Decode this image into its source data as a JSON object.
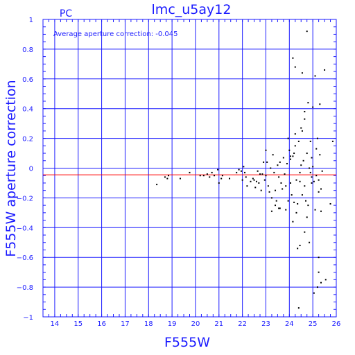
{
  "chart_data": {
    "type": "scatter",
    "title": "lmc_u5ay12",
    "corner_label": "PC",
    "annotation": "Average aperture correction: -0.045",
    "xlabel": "F555W",
    "ylabel": "F555W aperture correction",
    "xlim": [
      13.5,
      26
    ],
    "ylim": [
      -1,
      1
    ],
    "x_ticks": [
      14,
      15,
      16,
      17,
      18,
      19,
      20,
      21,
      22,
      23,
      24,
      25,
      26
    ],
    "y_ticks": [
      -1,
      -0.8,
      -0.6,
      -0.4,
      -0.2,
      0,
      0.2,
      0.4,
      0.6,
      0.8,
      1
    ],
    "x_tick_labels": [
      "14",
      "15",
      "16",
      "17",
      "18",
      "19",
      "20",
      "21",
      "22",
      "23",
      "24",
      "25",
      "26"
    ],
    "y_tick_labels": [
      "−1",
      "−0.8",
      "−0.6",
      "−0.4",
      "−0.2",
      "0",
      "0.2",
      "0.4",
      "0.6",
      "0.8",
      "1"
    ],
    "grid": true,
    "reference_lines": [
      {
        "y": -0.045,
        "color": "#ff0000"
      }
    ],
    "series": [
      {
        "color": "#000000",
        "points": [
          [
            18.35,
            -0.11
          ],
          [
            18.7,
            -0.06
          ],
          [
            18.8,
            -0.07
          ],
          [
            18.85,
            -0.05
          ],
          [
            19.35,
            -0.07
          ],
          [
            19.75,
            -0.03
          ],
          [
            20.2,
            -0.05
          ],
          [
            20.35,
            -0.05
          ],
          [
            20.5,
            -0.04
          ],
          [
            20.6,
            -0.06
          ],
          [
            20.7,
            -0.03
          ],
          [
            20.8,
            -0.05
          ],
          [
            20.95,
            -0.01
          ],
          [
            21.0,
            -0.1
          ],
          [
            21.1,
            -0.07
          ],
          [
            21.15,
            -0.05
          ],
          [
            21.45,
            -0.07
          ],
          [
            21.75,
            -0.03
          ],
          [
            21.85,
            -0.01
          ],
          [
            21.95,
            -0.02
          ],
          [
            22.0,
            -0.08
          ],
          [
            22.05,
            0.01
          ],
          [
            22.1,
            -0.03
          ],
          [
            22.15,
            -0.06
          ],
          [
            22.2,
            -0.12
          ],
          [
            22.35,
            -0.09
          ],
          [
            22.45,
            -0.07
          ],
          [
            22.5,
            -0.08
          ],
          [
            22.55,
            -0.13
          ],
          [
            22.6,
            -0.09
          ],
          [
            22.65,
            -0.02
          ],
          [
            22.7,
            -0.1
          ],
          [
            22.75,
            -0.04
          ],
          [
            22.8,
            -0.15
          ],
          [
            22.85,
            -0.04
          ],
          [
            22.9,
            0.04
          ],
          [
            22.95,
            -0.08
          ],
          [
            23.0,
            -0.05
          ],
          [
            23.05,
            0.04
          ],
          [
            23.1,
            -0.12
          ],
          [
            23.15,
            -0.16
          ],
          [
            23.2,
            0.0
          ],
          [
            23.25,
            -0.2
          ],
          [
            23.3,
            0.09
          ],
          [
            23.35,
            -0.03
          ],
          [
            23.4,
            -0.15
          ],
          [
            23.45,
            -0.22
          ],
          [
            23.5,
            0.02
          ],
          [
            23.55,
            -0.06
          ],
          [
            23.6,
            -0.27
          ],
          [
            23.65,
            -0.1
          ],
          [
            23.7,
            -0.14
          ],
          [
            23.75,
            0.07
          ],
          [
            23.8,
            -0.04
          ],
          [
            23.85,
            -0.12
          ],
          [
            23.9,
            0.03
          ],
          [
            23.95,
            0.2
          ],
          [
            24.0,
            0.12
          ],
          [
            24.05,
            0.06
          ],
          [
            24.1,
            -0.18
          ],
          [
            24.15,
            0.08
          ],
          [
            24.2,
            -0.23
          ],
          [
            24.25,
            0.15
          ],
          [
            24.3,
            -0.08
          ],
          [
            24.35,
            -0.24
          ],
          [
            24.4,
            0.18
          ],
          [
            24.45,
            -0.03
          ],
          [
            24.5,
            0.02
          ],
          [
            24.55,
            -0.18
          ],
          [
            24.6,
            0.05
          ],
          [
            24.65,
            0.38
          ],
          [
            24.7,
            -0.22
          ],
          [
            24.75,
            0.1
          ],
          [
            24.8,
            -0.25
          ],
          [
            24.85,
            0.0
          ],
          [
            24.9,
            -0.03
          ],
          [
            24.95,
            -0.06
          ],
          [
            25.0,
            0.01
          ],
          [
            25.05,
            -0.09
          ],
          [
            25.1,
            -0.28
          ],
          [
            25.15,
            -0.05
          ],
          [
            25.2,
            0.2
          ],
          [
            25.25,
            -0.08
          ],
          [
            25.3,
            0.09
          ],
          [
            25.35,
            -0.14
          ],
          [
            25.4,
            -0.02
          ],
          [
            23.0,
            0.12
          ],
          [
            23.6,
            0.04
          ],
          [
            23.85,
            -0.28
          ],
          [
            24.25,
            0.23
          ],
          [
            24.5,
            0.27
          ],
          [
            24.65,
            0.33
          ],
          [
            24.8,
            0.44
          ],
          [
            25.0,
            0.41
          ],
          [
            25.1,
            0.62
          ],
          [
            25.3,
            0.43
          ],
          [
            25.5,
            0.66
          ],
          [
            24.55,
            0.64
          ],
          [
            24.15,
            0.74
          ],
          [
            24.25,
            0.68
          ],
          [
            24.75,
            0.92
          ],
          [
            24.95,
            0.07
          ],
          [
            25.85,
            0.18
          ],
          [
            24.3,
            -0.3
          ],
          [
            24.35,
            -0.54
          ],
          [
            24.45,
            -0.52
          ],
          [
            24.65,
            -0.43
          ],
          [
            24.75,
            -0.33
          ],
          [
            24.85,
            -0.5
          ],
          [
            24.4,
            -0.94
          ],
          [
            25.05,
            -0.84
          ],
          [
            25.2,
            -0.8
          ],
          [
            25.25,
            -0.7
          ],
          [
            25.35,
            -0.77
          ],
          [
            25.55,
            -0.75
          ],
          [
            25.25,
            -0.6
          ],
          [
            25.75,
            -0.24
          ],
          [
            25.35,
            -0.29
          ],
          [
            23.25,
            -0.29
          ],
          [
            23.4,
            -0.25
          ],
          [
            23.55,
            -0.27
          ],
          [
            24.05,
            0.08
          ],
          [
            24.2,
            0.1
          ],
          [
            24.55,
            0.25
          ],
          [
            24.9,
            0.18
          ],
          [
            25.15,
            0.13
          ],
          [
            25.25,
            -0.16
          ],
          [
            23.95,
            -0.22
          ],
          [
            24.05,
            -0.1
          ],
          [
            24.15,
            -0.36
          ],
          [
            24.45,
            -0.09
          ],
          [
            24.65,
            -0.12
          ],
          [
            24.95,
            -0.1
          ]
        ]
      }
    ]
  }
}
